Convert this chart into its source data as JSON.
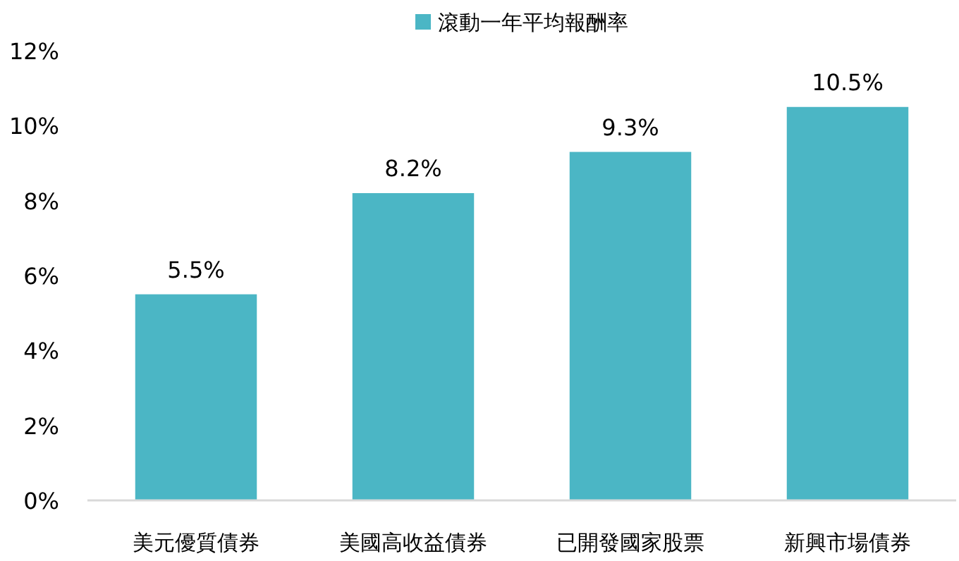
{
  "chart_data": {
    "type": "bar",
    "categories": [
      "美元優質債券",
      "美國高收益債券",
      "已開發國家股票",
      "新興市場債券"
    ],
    "series": [
      {
        "name": "滾動一年平均報酬率",
        "color": "#4bb6c5",
        "values": [
          5.5,
          8.2,
          9.3,
          10.5
        ],
        "value_labels": [
          "5.5%",
          "8.2%",
          "9.3%",
          "10.5%"
        ]
      }
    ],
    "ylim": [
      0,
      12
    ],
    "yticks": [
      {
        "value": 0,
        "label": "0%"
      },
      {
        "value": 2,
        "label": "2%"
      },
      {
        "value": 4,
        "label": "4%"
      },
      {
        "value": 6,
        "label": "6%"
      },
      {
        "value": 8,
        "label": "8%"
      },
      {
        "value": 10,
        "label": "10%"
      },
      {
        "value": 12,
        "label": "12%"
      }
    ],
    "legend": "top",
    "grid": false
  }
}
